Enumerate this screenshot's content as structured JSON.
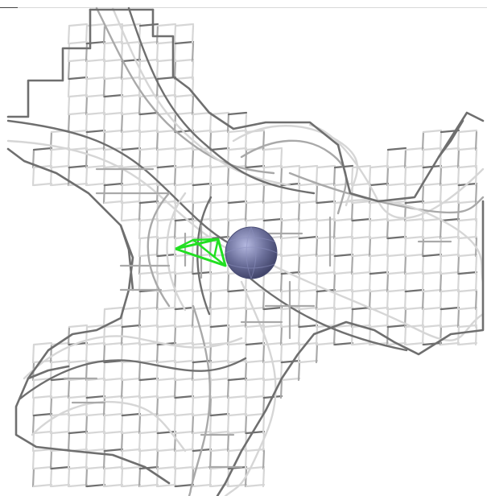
{
  "scene": {
    "description_free": true,
    "background_color": "#ffffff",
    "mesh_color_light": "#d6d6d6",
    "mesh_color_mid": "#a9a9a9",
    "mesh_color_dark": "#6f6f6f",
    "atom_color": "#6b6f9a",
    "marker_color": "#22e022"
  }
}
